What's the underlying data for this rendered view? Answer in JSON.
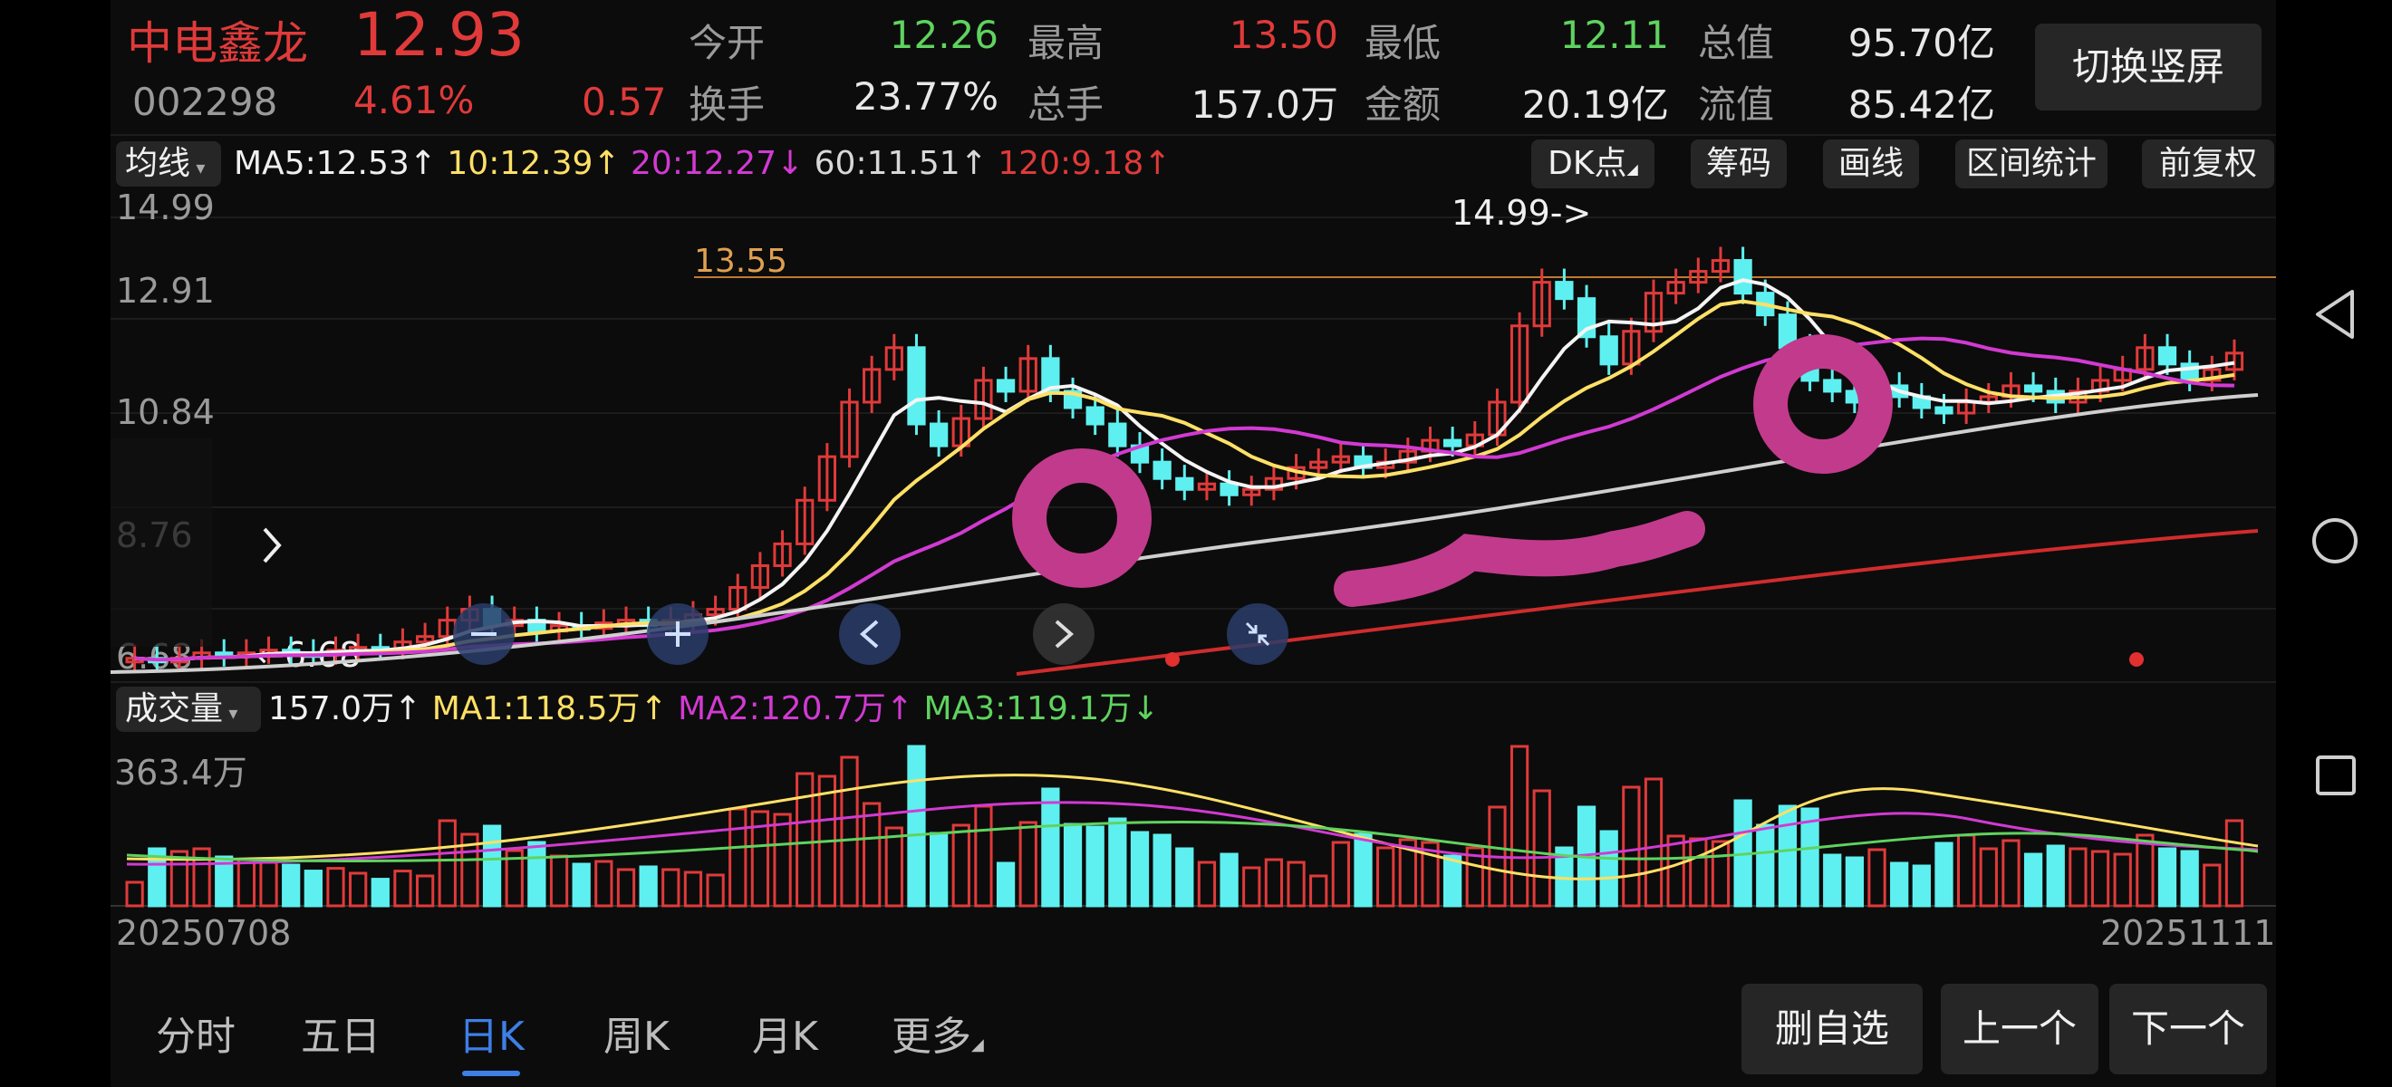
{
  "stock": {
    "name": "中电鑫龙",
    "price": "12.93",
    "code": "002298",
    "pct": "4.61%",
    "change": "0.57"
  },
  "quote": [
    {
      "label": "今开",
      "value": "12.26",
      "color": "green"
    },
    {
      "label": "最高",
      "value": "13.50",
      "color": "red"
    },
    {
      "label": "最低",
      "value": "12.11",
      "color": "green"
    },
    {
      "label": "总值",
      "value": "95.70亿",
      "color": "white"
    },
    {
      "label": "换手",
      "value": "23.77%",
      "color": "white"
    },
    {
      "label": "总手",
      "value": "157.0万",
      "color": "white"
    },
    {
      "label": "金额",
      "value": "20.19亿",
      "color": "white"
    },
    {
      "label": "流值",
      "value": "85.42亿",
      "color": "white"
    }
  ],
  "switch_button": "切换竖屏",
  "ma_bar": {
    "selector": "均线",
    "items": [
      {
        "text": "MA5:12.53↑",
        "color": "#f0f0f0"
      },
      {
        "text": "10:12.39↑",
        "color": "#ffe066"
      },
      {
        "text": "20:12.27↓",
        "color": "#d23ad2"
      },
      {
        "text": "60:11.51↑",
        "color": "#d8d8d8"
      },
      {
        "text": "120:9.18↑",
        "color": "#e03a3a"
      }
    ],
    "tools": [
      "DK点",
      "筹码",
      "画线",
      "区间统计",
      "前复权"
    ]
  },
  "kline": {
    "y_ticks": [
      "14.99",
      "12.91",
      "10.84",
      "8.76",
      "6.68"
    ],
    "ref_line_label": "13.55",
    "high_label": "14.99->",
    "low_label": "←6.68"
  },
  "volume_bar": {
    "selector": "成交量",
    "items": [
      {
        "text": "157.0万↑",
        "color": "#f0f0f0"
      },
      {
        "text": "MA1:118.5万↑",
        "color": "#ffe066"
      },
      {
        "text": "MA2:120.7万↑",
        "color": "#d23ad2"
      },
      {
        "text": "MA3:119.1万↓",
        "color": "#5fd35f"
      }
    ],
    "max_label": "363.4万"
  },
  "dates": {
    "start": "20250708",
    "end": "20251111"
  },
  "tabs": [
    {
      "label": "分时",
      "active": false
    },
    {
      "label": "五日",
      "active": false
    },
    {
      "label": "日K",
      "active": true
    },
    {
      "label": "周K",
      "active": false
    },
    {
      "label": "月K",
      "active": false
    },
    {
      "label": "更多",
      "active": false
    }
  ],
  "actions": [
    "删自选",
    "上一个",
    "下一个"
  ],
  "colors": {
    "up": "#e03a3a",
    "down": "#5ef0f0",
    "accent_tab": "#3d7fe6",
    "annotation": "#c23a8c"
  },
  "icons": {
    "nav_back": "back-triangle-icon",
    "nav_home": "home-circle-icon",
    "nav_recent": "recent-square-icon"
  }
}
